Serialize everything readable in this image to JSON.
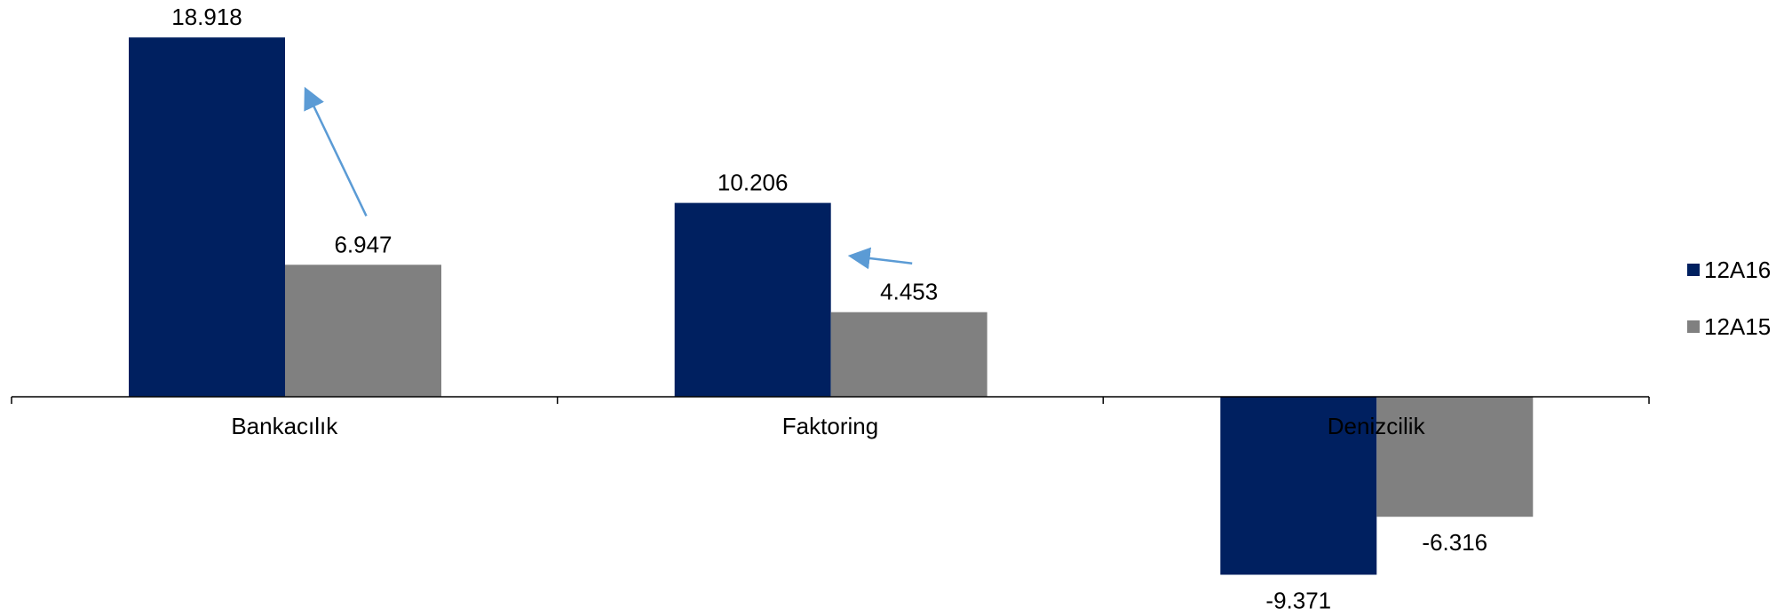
{
  "chart_data": {
    "type": "bar",
    "title": "",
    "xlabel": "",
    "ylabel": "",
    "categories": [
      "Bankacılık",
      "Faktoring",
      "Denizcilik"
    ],
    "series": [
      {
        "name": "12A16",
        "color": "#002060",
        "values": [
          18.918,
          10.206,
          -9.371
        ],
        "labels": [
          "18.918",
          "10.206",
          "-9.371"
        ]
      },
      {
        "name": "12A15",
        "color": "#808080",
        "values": [
          6.947,
          4.453,
          -6.316
        ],
        "labels": [
          "6.947",
          "4.453",
          "-6.316"
        ]
      }
    ],
    "ylim": [
      -11.5,
      20.6
    ],
    "grid": false,
    "legend_position": "right",
    "annotations": [
      {
        "type": "arrow",
        "category": "Bankacılık",
        "from_series": "12A15",
        "to_series": "12A16",
        "color": "#5B9BD5"
      },
      {
        "type": "arrow",
        "category": "Faktoring",
        "from_series": "12A15",
        "to_series": "12A16",
        "color": "#5B9BD5"
      }
    ]
  }
}
